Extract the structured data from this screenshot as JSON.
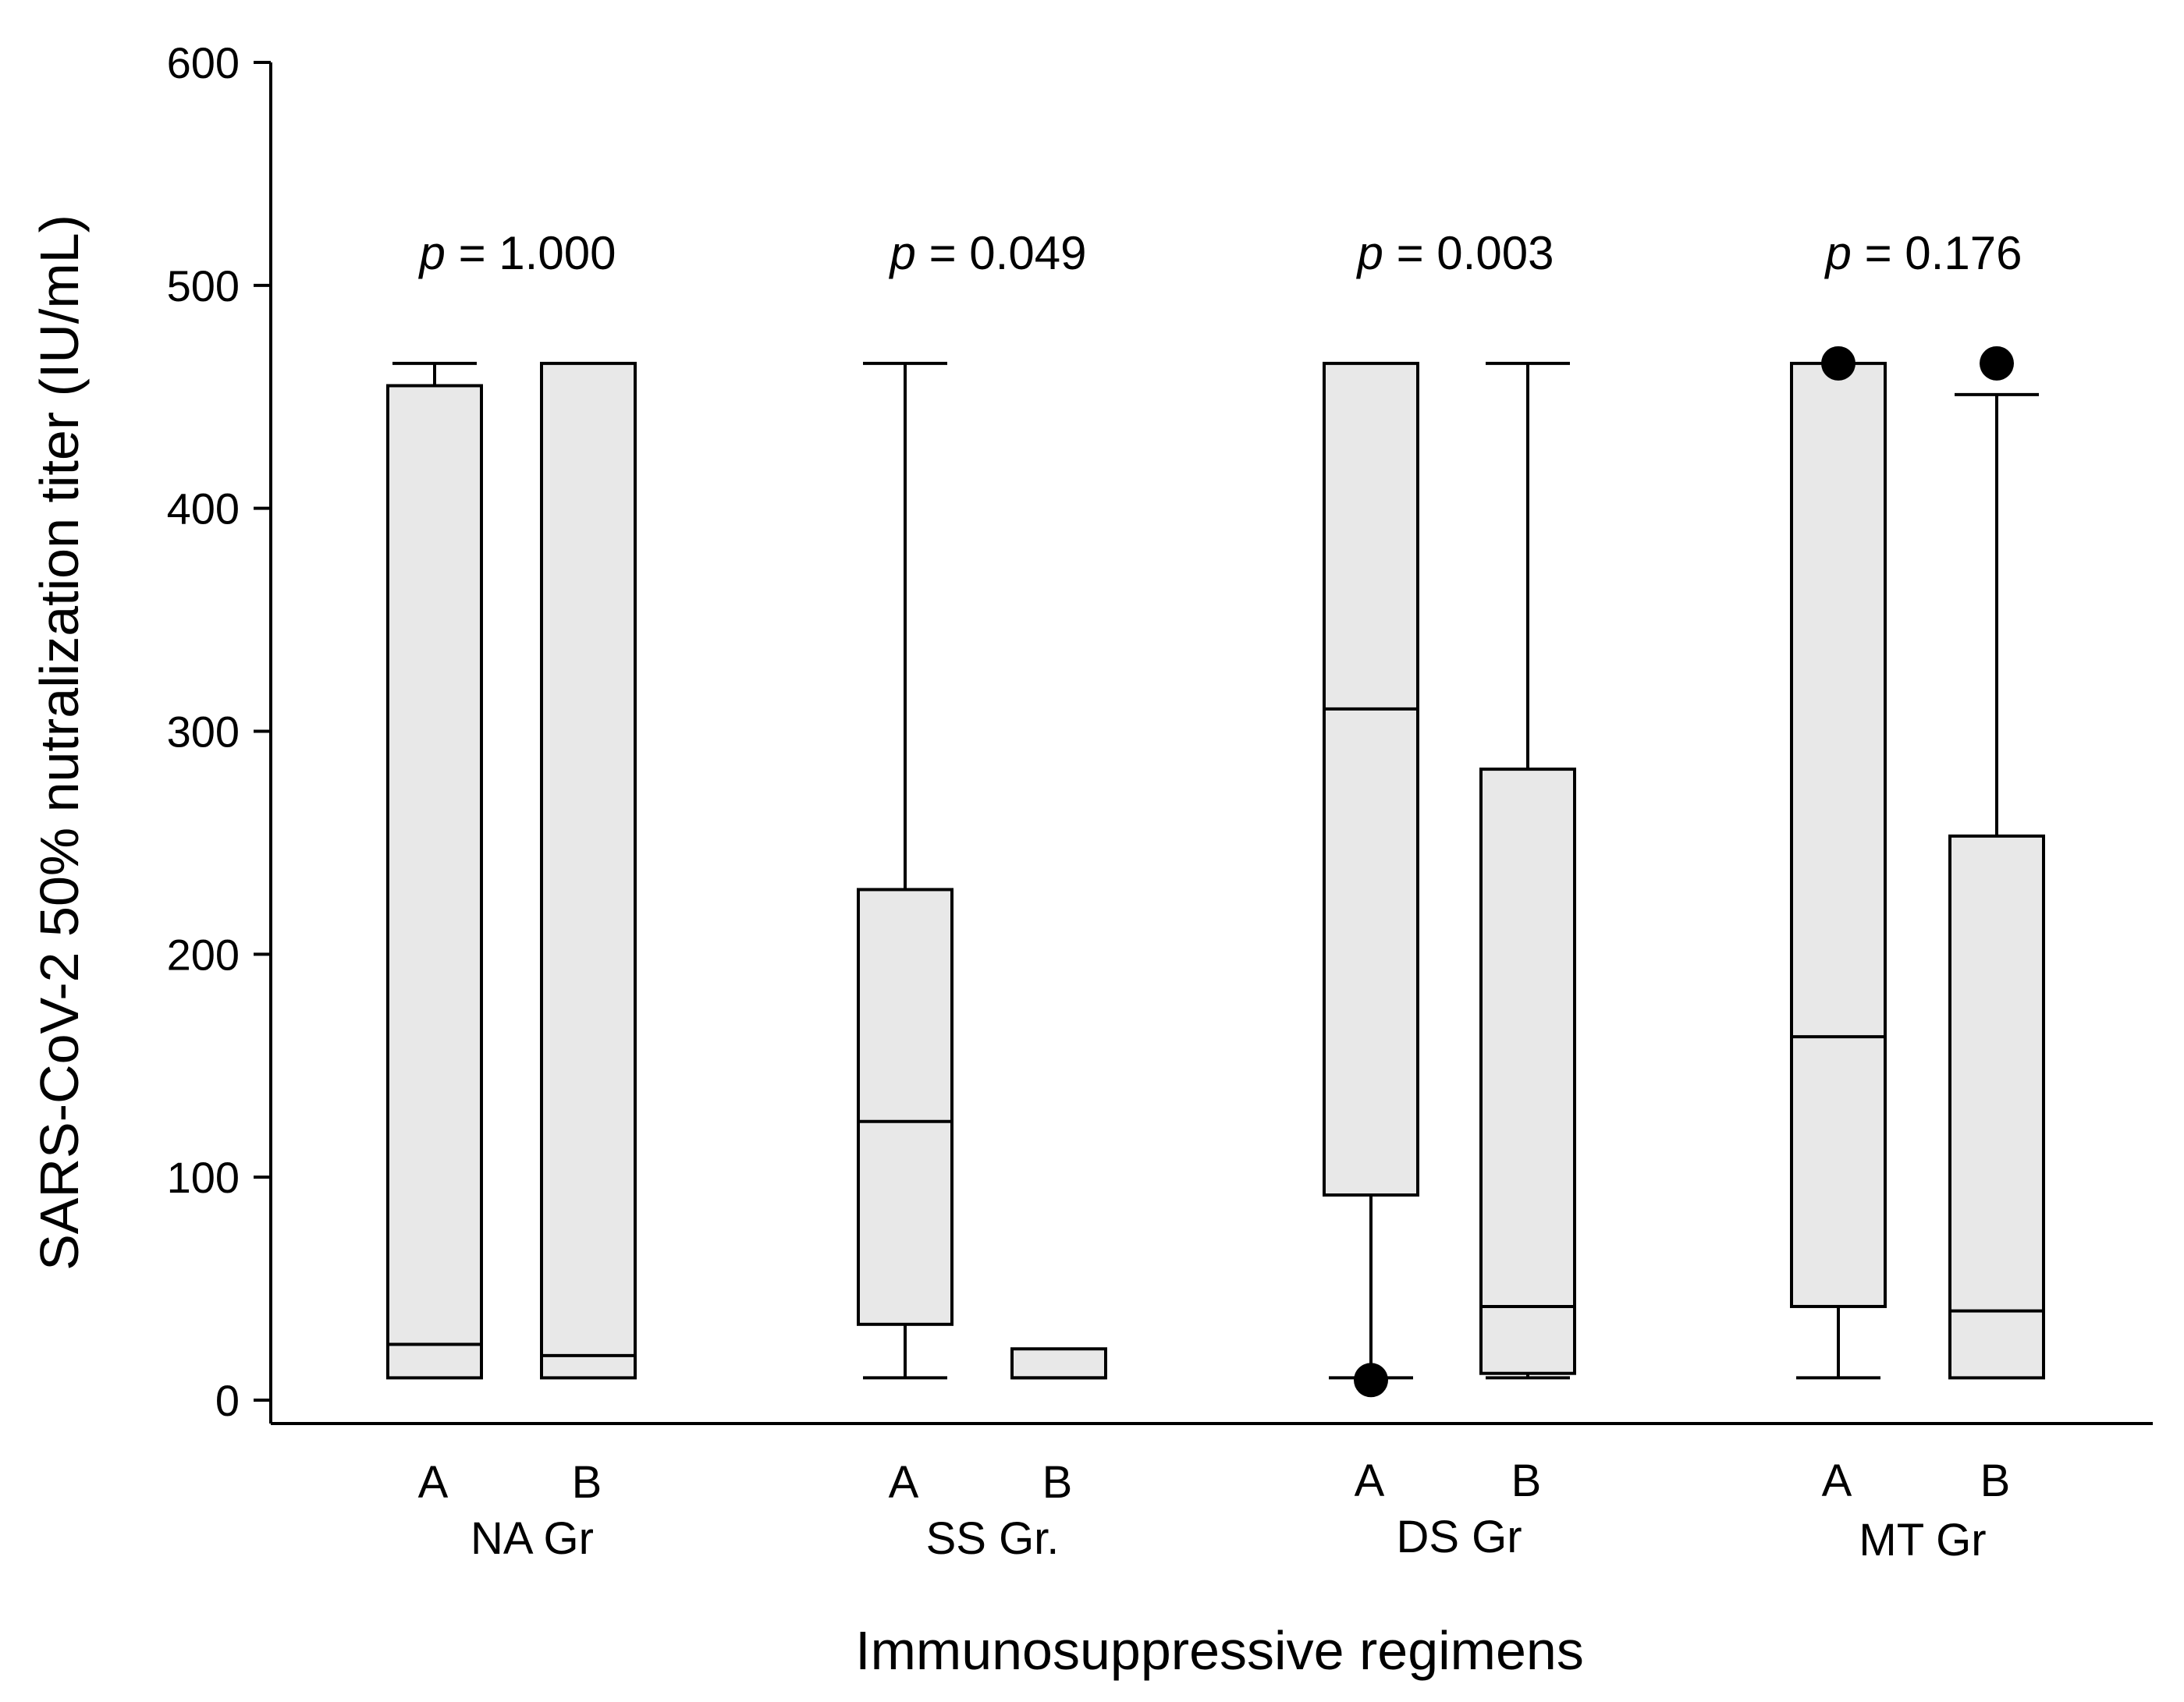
{
  "chart_data": {
    "type": "boxplot",
    "title": "",
    "xlabel": "Immunosuppressive regimens",
    "ylabel": "SARS-CoV-2 50% nutralization titer (IU/mL)",
    "ylim": [
      0,
      600
    ],
    "yticks": [
      0,
      100,
      200,
      300,
      400,
      500,
      600
    ],
    "grid": false,
    "groups": [
      {
        "name": "NA Gr",
        "p_prefix": "p",
        "p_value": "= 1.000",
        "boxes": [
          {
            "label": "A",
            "whisker_low": 10,
            "q1": 10,
            "median": 25,
            "q3": 455,
            "whisker_high": 465,
            "outliers": []
          },
          {
            "label": "B",
            "whisker_low": 10,
            "q1": 10,
            "median": 20,
            "q3": 465,
            "whisker_high": 465,
            "outliers": []
          }
        ]
      },
      {
        "name": "SS Gr.",
        "p_prefix": "p",
        "p_value": "= 0.049",
        "boxes": [
          {
            "label": "A",
            "whisker_low": 10,
            "q1": 34,
            "median": 125,
            "q3": 229,
            "whisker_high": 465,
            "outliers": []
          },
          {
            "label": "B",
            "whisker_low": 10,
            "q1": 10,
            "median": 10,
            "q3": 23,
            "whisker_high": 23,
            "outliers": []
          }
        ]
      },
      {
        "name": "DS Gr",
        "p_prefix": "p",
        "p_value": "= 0.003",
        "boxes": [
          {
            "label": "A",
            "whisker_low": 10,
            "q1": 92,
            "median": 310,
            "q3": 465,
            "whisker_high": 465,
            "outliers": [
              9
            ]
          },
          {
            "label": "B",
            "whisker_low": 10,
            "q1": 12,
            "median": 42,
            "q3": 283,
            "whisker_high": 465,
            "outliers": []
          }
        ]
      },
      {
        "name": "MT Gr",
        "p_prefix": "p",
        "p_value": "= 0.176",
        "boxes": [
          {
            "label": "A",
            "whisker_low": 10,
            "q1": 42,
            "median": 163,
            "q3": 465,
            "whisker_high": 465,
            "outliers": [
              465
            ]
          },
          {
            "label": "B",
            "whisker_low": 10,
            "q1": 10,
            "median": 40,
            "q3": 253,
            "whisker_high": 451,
            "outliers": [
              465
            ]
          }
        ]
      }
    ]
  },
  "colors": {
    "box_fill": "#e8e8e8",
    "stroke": "#000000"
  }
}
